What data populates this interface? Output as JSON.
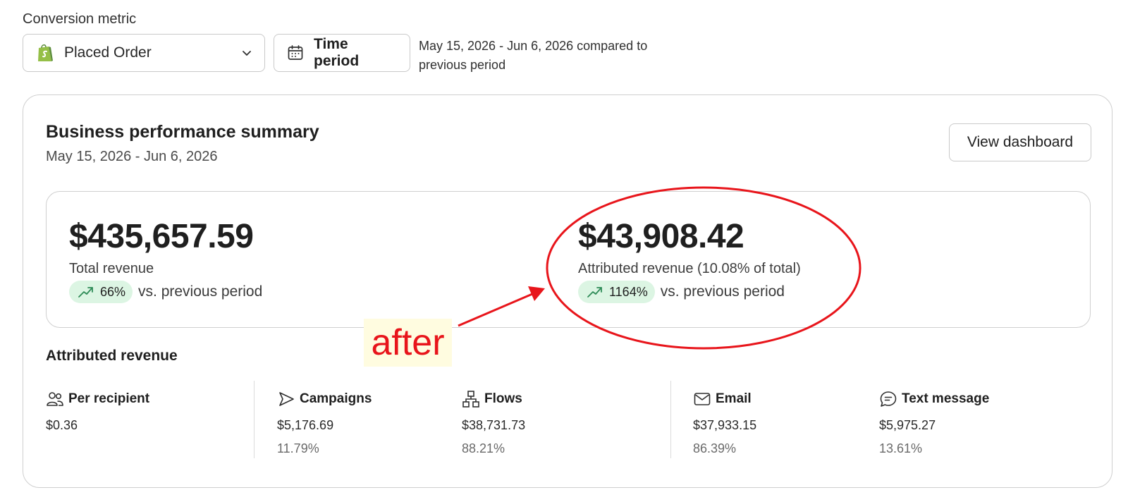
{
  "conversion": {
    "label": "Conversion metric",
    "selected": "Placed Order",
    "icon": "shopify-icon"
  },
  "time_period": {
    "label": "Time period",
    "icon": "calendar-icon",
    "description": "May 15, 2026 - Jun 6, 2026 compared to previous period"
  },
  "summary": {
    "title": "Business performance summary",
    "range": "May 15, 2026 - Jun 6, 2026",
    "view_button": "View dashboard"
  },
  "total": {
    "amount": "$435,657.59",
    "label": "Total revenue",
    "growth": "66%",
    "vs": "vs. previous period"
  },
  "attributed": {
    "amount": "$43,908.42",
    "label": "Attributed revenue (10.08% of total)",
    "growth": "1164%",
    "vs": "vs. previous period"
  },
  "breakdown": {
    "title": "Attributed revenue",
    "items": [
      {
        "label": "Per recipient",
        "value": "$0.36",
        "percent": "",
        "icon": "users-icon"
      },
      {
        "label": "Campaigns",
        "value": "$5,176.69",
        "percent": "11.79%",
        "icon": "send-icon"
      },
      {
        "label": "Flows",
        "value": "$38,731.73",
        "percent": "88.21%",
        "icon": "flow-icon"
      },
      {
        "label": "Email",
        "value": "$37,933.15",
        "percent": "86.39%",
        "icon": "mail-icon"
      },
      {
        "label": "Text message",
        "value": "$5,975.27",
        "percent": "13.61%",
        "icon": "chat-icon"
      }
    ]
  },
  "annotation": {
    "text": "after",
    "color": "#e8151b",
    "highlight": "#fffce0"
  },
  "colors": {
    "pill_bg": "#dcf5e3",
    "trend_green": "#2e8b57",
    "shopify_green": "#95bf47"
  }
}
